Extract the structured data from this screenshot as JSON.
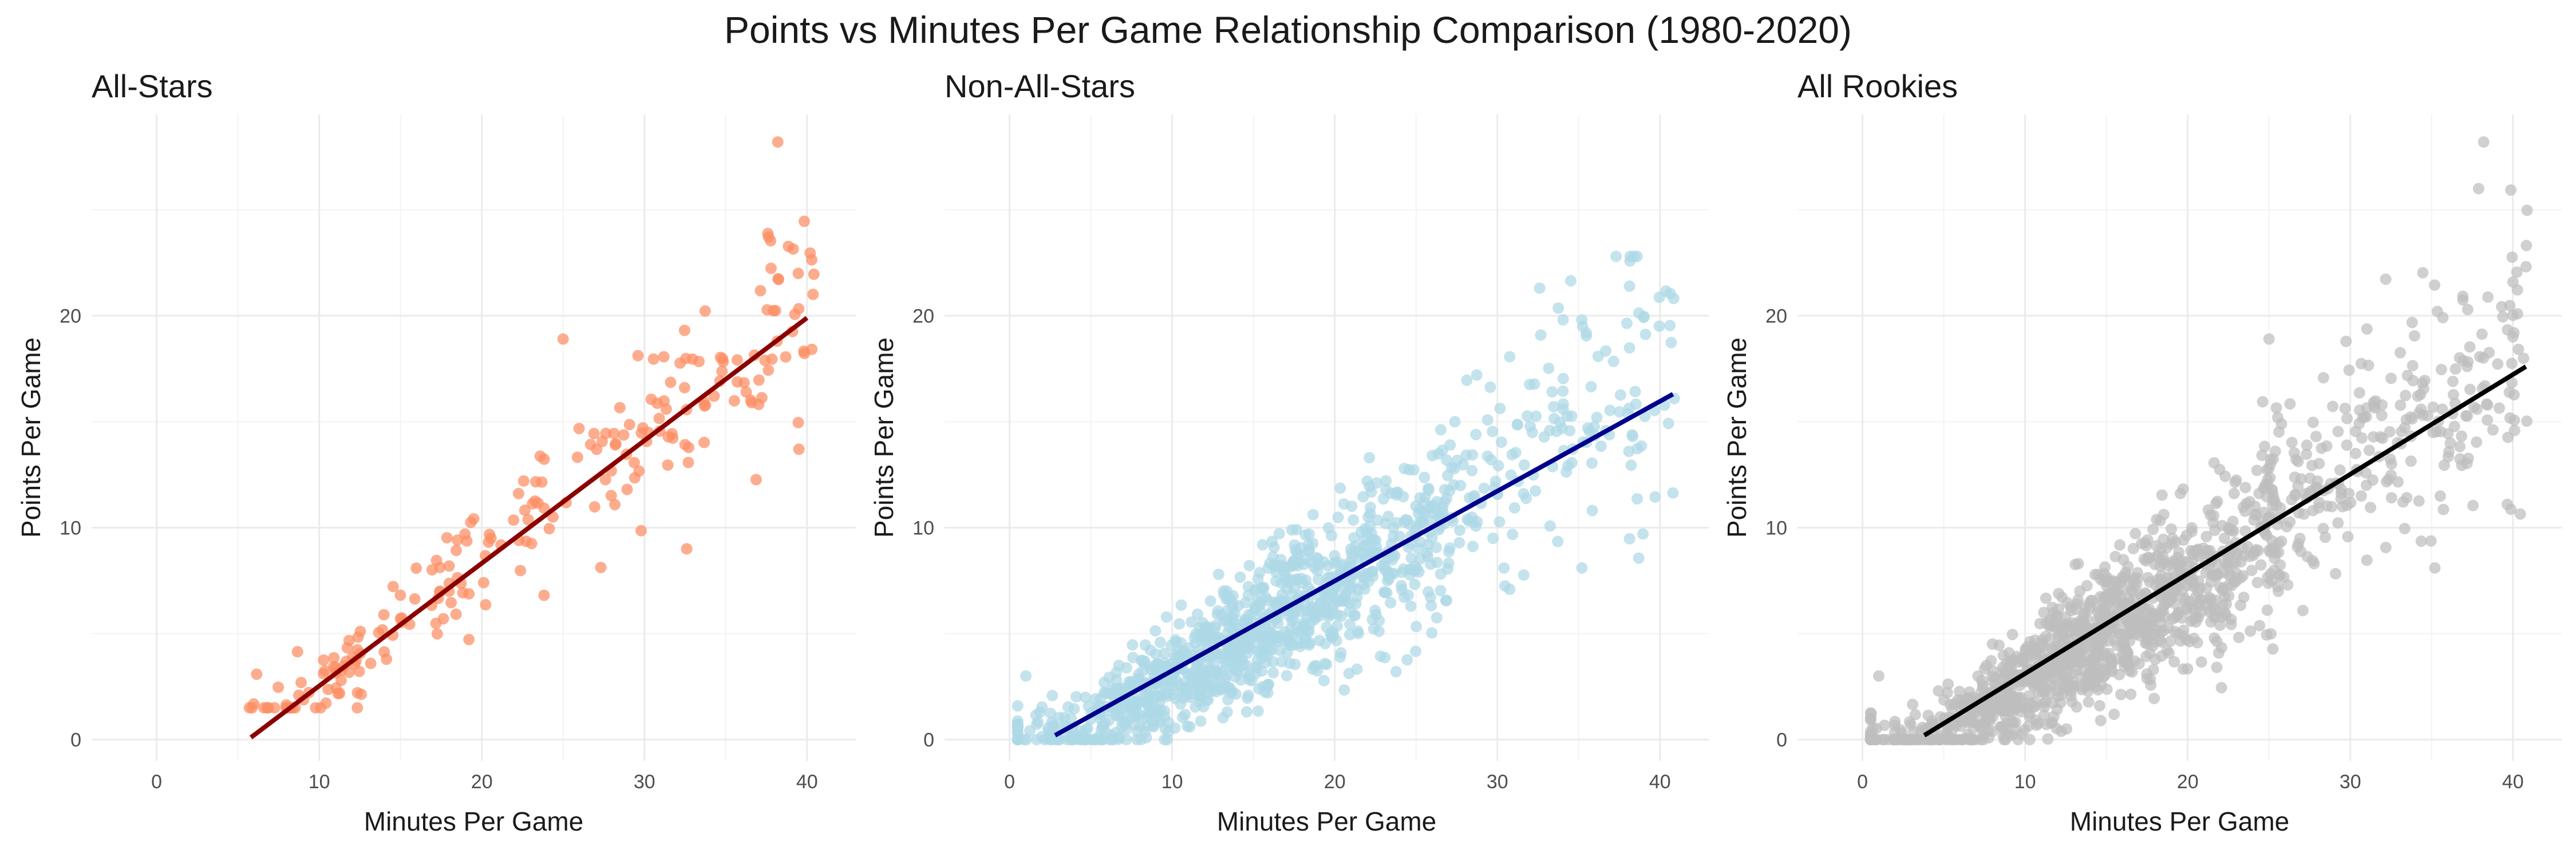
{
  "title": "Points vs Minutes Per Game Relationship Comparison (1980-2020)",
  "chart_data": [
    {
      "type": "scatter",
      "panel_title": "All-Stars",
      "xlabel": "Minutes Per Game",
      "ylabel": "Points Per Game",
      "xlim": [
        -4,
        43
      ],
      "ylim": [
        -1,
        29.5
      ],
      "xticks": [
        0,
        10,
        20,
        30,
        40
      ],
      "yticks": [
        0,
        10,
        20
      ],
      "grid": true,
      "point_color": "#fc8d62",
      "line_color": "#8b0000",
      "trend_line": {
        "x": [
          5.8,
          40
        ],
        "y": [
          0.1,
          19.9
        ]
      },
      "n_points": 230,
      "x_range": [
        5.5,
        40.5
      ],
      "y_range": [
        1.5,
        28.2
      ],
      "outliers": [
        [
          38.2,
          28.2
        ],
        [
          25,
          18.9
        ],
        [
          39.5,
          13.7
        ],
        [
          32.6,
          9
        ]
      ]
    },
    {
      "type": "scatter",
      "panel_title": "Non-All-Stars",
      "xlabel": "Minutes Per Game",
      "ylabel": "Points Per Game",
      "xlim": [
        -4,
        43
      ],
      "ylim": [
        -1,
        29.5
      ],
      "xticks": [
        0,
        10,
        20,
        30,
        40
      ],
      "yticks": [
        0,
        10,
        20
      ],
      "grid": true,
      "point_color": "#add8e6",
      "line_color": "#00008b",
      "trend_line": {
        "x": [
          2.8,
          40.8
        ],
        "y": [
          0.2,
          16.3
        ]
      },
      "n_points": 1200,
      "x_range": [
        0.5,
        41
      ],
      "y_range": [
        0,
        22.8
      ],
      "outliers": [
        [
          37.3,
          22.8
        ],
        [
          32.6,
          21.3
        ],
        [
          35.2,
          8.1
        ],
        [
          1,
          3
        ]
      ]
    },
    {
      "type": "scatter",
      "panel_title": "All Rookies",
      "xlabel": "Minutes Per Game",
      "ylabel": "Points Per Game",
      "xlim": [
        -4,
        43
      ],
      "ylim": [
        -1,
        29.5
      ],
      "xticks": [
        0,
        10,
        20,
        30,
        40
      ],
      "yticks": [
        0,
        10,
        20
      ],
      "grid": true,
      "point_color": "#bebebe",
      "line_color": "#000000",
      "trend_line": {
        "x": [
          3.8,
          40.8
        ],
        "y": [
          0.2,
          17.6
        ]
      },
      "n_points": 1430,
      "x_range": [
        0.5,
        41
      ],
      "y_range": [
        0,
        28.2
      ],
      "outliers": [
        [
          38.2,
          28.2
        ],
        [
          25,
          18.9
        ],
        [
          35.2,
          8.1
        ],
        [
          1,
          3
        ]
      ]
    }
  ]
}
